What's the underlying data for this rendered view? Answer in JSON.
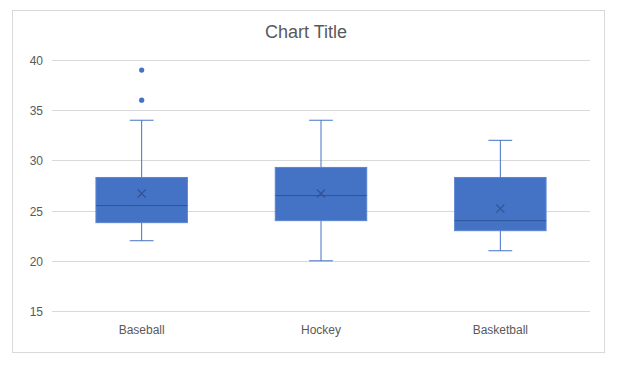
{
  "chart_data": {
    "type": "box",
    "title": "Chart Title",
    "categories": [
      "Baseball",
      "Hockey",
      "Basketball"
    ],
    "min": [
      22,
      20,
      21
    ],
    "q1": [
      23.8,
      24,
      23
    ],
    "median": [
      25.5,
      26.5,
      24
    ],
    "q3": [
      28.3,
      29.3,
      28.3
    ],
    "max": [
      34,
      34,
      32
    ],
    "mean": [
      26.7,
      26.7,
      25.2
    ],
    "outliers": [
      [
        36,
        39
      ],
      [],
      []
    ],
    "color": "#4472c4",
    "ylim": [
      15,
      40
    ],
    "yticks": [
      15,
      20,
      25,
      30,
      35,
      40
    ],
    "grid": true
  }
}
